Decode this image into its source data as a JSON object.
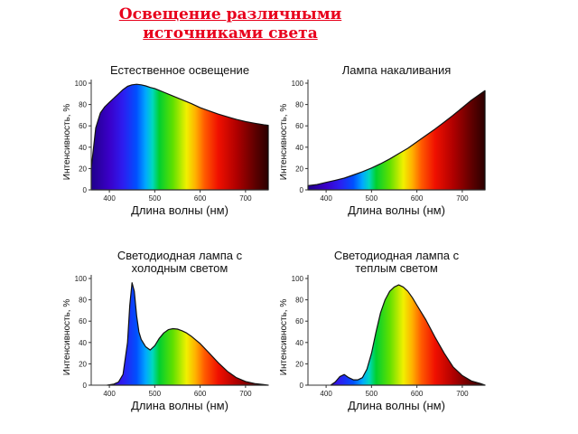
{
  "title": {
    "line1": "Освещение различными",
    "line2": "источниками света"
  },
  "chart_data": [
    {
      "type": "area",
      "title_lines": [
        "Естественное освещение"
      ],
      "xlabel": "Длина волны (нм)",
      "ylabel": "Интенсивность, %",
      "xlim": [
        360,
        750
      ],
      "ylim": [
        0,
        100
      ],
      "xticks": [
        400,
        500,
        600,
        700
      ],
      "yticks": [
        0,
        20,
        40,
        60,
        80,
        100
      ],
      "series": [
        {
          "x": [
            360,
            370,
            380,
            390,
            400,
            410,
            420,
            430,
            440,
            450,
            460,
            470,
            480,
            490,
            500,
            520,
            540,
            560,
            580,
            600,
            620,
            640,
            660,
            680,
            700,
            720,
            740,
            750
          ],
          "y": [
            20,
            58,
            72,
            78,
            82,
            86,
            90,
            94,
            97,
            98.5,
            99,
            98.5,
            97.5,
            96,
            95,
            91.5,
            88,
            84.5,
            81,
            77,
            74,
            71,
            68.5,
            66,
            64,
            62.5,
            61,
            60.5
          ]
        }
      ]
    },
    {
      "type": "area",
      "title_lines": [
        "Лампа накаливания"
      ],
      "xlabel": "Длина волны (нм)",
      "ylabel": "Интенсивность, %",
      "xlim": [
        360,
        750
      ],
      "ylim": [
        0,
        100
      ],
      "xticks": [
        400,
        500,
        600,
        700
      ],
      "yticks": [
        0,
        20,
        40,
        60,
        80,
        100
      ],
      "series": [
        {
          "x": [
            360,
            380,
            400,
            420,
            440,
            460,
            480,
            500,
            520,
            540,
            560,
            580,
            600,
            620,
            640,
            660,
            680,
            700,
            720,
            740,
            750
          ],
          "y": [
            4,
            5,
            7,
            9,
            11,
            14,
            17,
            20.5,
            24.5,
            29,
            34,
            39,
            45,
            51,
            57,
            63.5,
            70,
            77,
            84,
            90,
            93
          ]
        }
      ]
    },
    {
      "type": "area",
      "title_lines": [
        "Светодиодная лампа с",
        "холодным светом"
      ],
      "xlabel": "Длина волны (нм)",
      "ylabel": "Интенсивность, %",
      "xlim": [
        360,
        750
      ],
      "ylim": [
        0,
        100
      ],
      "xticks": [
        400,
        500,
        600,
        700
      ],
      "yticks": [
        0,
        20,
        40,
        60,
        80,
        100
      ],
      "series": [
        {
          "x": [
            395,
            410,
            420,
            430,
            440,
            445,
            450,
            455,
            460,
            465,
            470,
            480,
            490,
            500,
            510,
            520,
            530,
            540,
            550,
            560,
            570,
            580,
            600,
            620,
            640,
            660,
            680,
            700,
            720,
            740,
            750
          ],
          "y": [
            0,
            1,
            3,
            10,
            40,
            75,
            96,
            88,
            65,
            50,
            43,
            36,
            33,
            37,
            44,
            49,
            52,
            53,
            52.5,
            51,
            49,
            46,
            39,
            30,
            21,
            13,
            7,
            3.5,
            1.5,
            0.5,
            0
          ]
        }
      ]
    },
    {
      "type": "area",
      "title_lines": [
        "Светодиодная лампа с",
        "теплым светом"
      ],
      "xlabel": "Длина волны (нм)",
      "ylabel": "Интенсивность, %",
      "xlim": [
        360,
        750
      ],
      "ylim": [
        0,
        100
      ],
      "xticks": [
        400,
        500,
        600,
        700
      ],
      "yticks": [
        0,
        20,
        40,
        60,
        80,
        100
      ],
      "series": [
        {
          "x": [
            410,
            420,
            430,
            440,
            450,
            460,
            470,
            480,
            490,
            500,
            510,
            520,
            530,
            540,
            550,
            560,
            570,
            580,
            590,
            600,
            620,
            640,
            660,
            680,
            700,
            720,
            740,
            750
          ],
          "y": [
            0,
            3,
            8,
            10,
            7,
            5,
            5,
            7,
            15,
            30,
            50,
            68,
            80,
            88,
            92,
            94,
            92,
            88,
            82,
            75,
            61,
            45,
            30,
            17,
            9,
            4,
            1.5,
            0
          ]
        }
      ]
    }
  ]
}
